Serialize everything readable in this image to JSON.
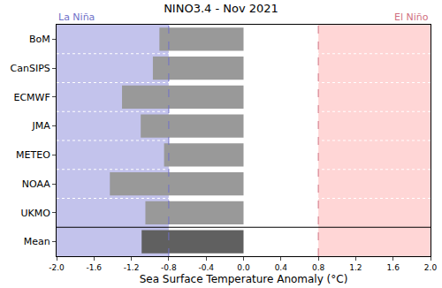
{
  "chart_data": {
    "type": "bar",
    "orientation": "horizontal",
    "title": "NINO3.4 - Nov 2021",
    "xlabel": "Sea Surface Temperature Anomaly (°C)",
    "categories": [
      "BoM",
      "CanSIPS",
      "ECMWF",
      "JMA",
      "METEO",
      "NOAA",
      "UKMO",
      "Mean"
    ],
    "values": [
      -0.9,
      -0.97,
      -1.3,
      -1.1,
      -0.85,
      -1.43,
      -1.05,
      -1.09
    ],
    "colors": [
      "#999999",
      "#999999",
      "#999999",
      "#999999",
      "#999999",
      "#999999",
      "#999999",
      "#606060"
    ],
    "xlim": [
      -2.0,
      2.0
    ],
    "xticks": [
      {
        "value": -2.0,
        "label": "-2.0"
      },
      -1.6,
      -1.2,
      -0.8,
      -0.4,
      {
        "value": 0.0,
        "label": "0.0"
      },
      0.4,
      0.8,
      1.2,
      1.6,
      {
        "value": 2.0,
        "label": "2.0"
      }
    ],
    "regions": [
      {
        "label": "La Niña",
        "from": -2.0,
        "to": -0.8,
        "color": "#c3c3ec",
        "line_color": "#7070c8"
      },
      {
        "label": "El Niño",
        "from": 0.8,
        "to": 2.0,
        "color": "#ffd6d6",
        "line_color": "#d07080"
      }
    ],
    "grid": false
  }
}
